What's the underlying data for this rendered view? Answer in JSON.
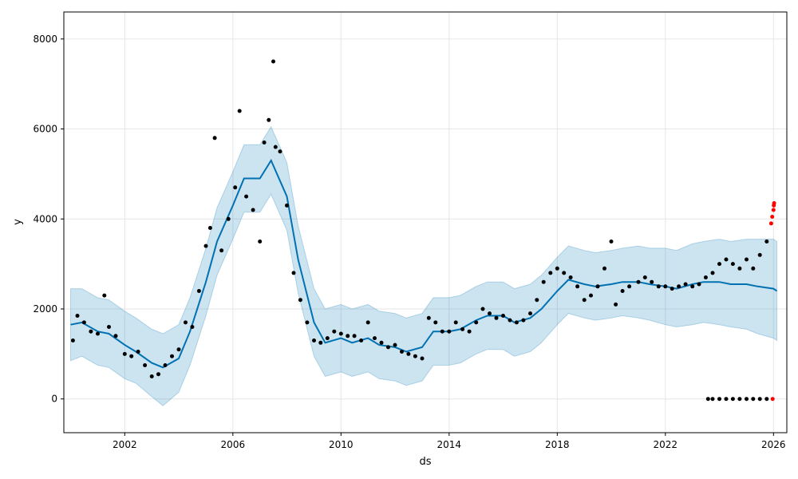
{
  "chart_data": {
    "type": "line",
    "title": "",
    "xlabel": "ds",
    "ylabel": "y",
    "grid": true,
    "xlim": [
      "1999-10-01",
      "2026-06-30"
    ],
    "ylim": [
      -750,
      8600
    ],
    "x_ticks": [
      "2002",
      "2006",
      "2010",
      "2014",
      "2018",
      "2022",
      "2026"
    ],
    "y_ticks": [
      0,
      2000,
      4000,
      6000,
      8000
    ],
    "colors": {
      "forecast_line": "#0072B2",
      "uncertainty_band": "#0072B2",
      "observed_points": "#000000",
      "outlier_points": "#ff0000"
    },
    "series": [
      {
        "type": "line",
        "x": [
          "2000-01-01",
          "2000-06-01",
          "2001-01-01",
          "2001-06-01",
          "2002-01-01",
          "2002-06-01",
          "2003-01-01",
          "2003-06-01",
          "2004-01-01",
          "2004-06-01",
          "2005-01-01",
          "2005-06-01",
          "2006-01-01",
          "2006-06-01",
          "2007-01-01",
          "2007-06-01",
          "2008-01-01",
          "2008-06-01",
          "2009-01-01",
          "2009-06-01",
          "2010-01-01",
          "2010-06-01",
          "2011-01-01",
          "2011-06-01",
          "2012-01-01",
          "2012-06-01",
          "2013-01-01",
          "2013-06-01",
          "2014-01-01",
          "2014-06-01",
          "2015-01-01",
          "2015-06-01",
          "2016-01-01",
          "2016-06-01",
          "2017-01-01",
          "2017-06-01",
          "2018-01-01",
          "2018-06-01",
          "2019-01-01",
          "2019-06-01",
          "2020-01-01",
          "2020-06-01",
          "2021-01-01",
          "2021-06-01",
          "2022-01-01",
          "2022-06-01",
          "2023-01-01",
          "2023-06-01",
          "2024-01-01",
          "2024-06-01",
          "2025-01-01",
          "2025-06-01",
          "2026-01-01",
          "2026-02-15"
        ],
        "y": [
          1650,
          1700,
          1500,
          1450,
          1200,
          1050,
          800,
          700,
          900,
          1500,
          2600,
          3500,
          4300,
          4900,
          4900,
          5300,
          4500,
          3100,
          1700,
          1250,
          1350,
          1250,
          1350,
          1200,
          1150,
          1050,
          1150,
          1500,
          1500,
          1550,
          1750,
          1850,
          1850,
          1700,
          1800,
          2000,
          2400,
          2650,
          2550,
          2500,
          2550,
          2600,
          2600,
          2550,
          2500,
          2450,
          2550,
          2600,
          2600,
          2550,
          2550,
          2500,
          2450,
          2400
        ],
        "yhat_lower": [
          850,
          950,
          750,
          700,
          450,
          350,
          50,
          -150,
          150,
          750,
          1850,
          2750,
          3550,
          4150,
          4150,
          4550,
          3750,
          2350,
          950,
          500,
          600,
          500,
          600,
          450,
          400,
          300,
          400,
          750,
          750,
          800,
          1000,
          1100,
          1100,
          950,
          1050,
          1250,
          1650,
          1900,
          1800,
          1750,
          1800,
          1850,
          1800,
          1750,
          1650,
          1600,
          1650,
          1700,
          1650,
          1600,
          1550,
          1450,
          1350,
          1300
        ],
        "yhat_upper": [
          2450,
          2450,
          2250,
          2200,
          1950,
          1800,
          1550,
          1450,
          1650,
          2250,
          3350,
          4250,
          5050,
          5650,
          5650,
          6050,
          5250,
          3850,
          2450,
          2000,
          2100,
          2000,
          2100,
          1950,
          1900,
          1800,
          1900,
          2250,
          2250,
          2300,
          2500,
          2600,
          2600,
          2450,
          2550,
          2750,
          3150,
          3400,
          3300,
          3250,
          3300,
          3350,
          3400,
          3350,
          3350,
          3300,
          3450,
          3500,
          3550,
          3500,
          3550,
          3550,
          3550,
          3500
        ]
      },
      {
        "type": "scatter",
        "x": [
          "2000-02-01",
          "2000-04-01",
          "2000-07-01",
          "2000-10-01",
          "2001-01-01",
          "2001-04-01",
          "2001-06-01",
          "2001-09-01",
          "2002-01-01",
          "2002-04-01",
          "2002-07-01",
          "2002-10-01",
          "2003-01-01",
          "2003-04-01",
          "2003-07-01",
          "2003-10-01",
          "2004-01-01",
          "2004-04-01",
          "2004-07-01",
          "2004-10-01",
          "2005-01-01",
          "2005-03-01",
          "2005-05-01",
          "2005-08-01",
          "2005-11-01",
          "2006-02-01",
          "2006-04-01",
          "2006-07-01",
          "2006-10-01",
          "2007-01-01",
          "2007-03-01",
          "2007-05-01",
          "2007-07-01",
          "2007-08-01",
          "2007-10-01",
          "2008-01-01",
          "2008-04-01",
          "2008-07-01",
          "2008-10-01",
          "2009-01-01",
          "2009-04-01",
          "2009-07-01",
          "2009-10-01",
          "2010-01-01",
          "2010-04-01",
          "2010-07-01",
          "2010-10-01",
          "2011-01-01",
          "2011-04-01",
          "2011-07-01",
          "2011-10-01",
          "2012-01-01",
          "2012-04-01",
          "2012-07-01",
          "2012-10-01",
          "2013-01-01",
          "2013-04-01",
          "2013-07-01",
          "2013-10-01",
          "2014-01-01",
          "2014-04-01",
          "2014-07-01",
          "2014-10-01",
          "2015-01-01",
          "2015-04-01",
          "2015-07-01",
          "2015-10-01",
          "2016-01-01",
          "2016-04-01",
          "2016-07-01",
          "2016-10-01",
          "2017-01-01",
          "2017-04-01",
          "2017-07-01",
          "2017-10-01",
          "2018-01-01",
          "2018-04-01",
          "2018-07-01",
          "2018-10-01",
          "2019-01-01",
          "2019-04-01",
          "2019-07-01",
          "2019-10-01",
          "2020-01-01",
          "2020-03-01",
          "2020-06-01",
          "2020-09-01",
          "2021-01-01",
          "2021-04-01",
          "2021-07-01",
          "2021-10-01",
          "2022-01-01",
          "2022-04-01",
          "2022-07-01",
          "2022-10-01",
          "2023-01-01",
          "2023-04-01",
          "2023-07-01",
          "2023-10-01",
          "2024-01-01",
          "2024-04-01",
          "2024-07-01",
          "2024-10-01",
          "2025-01-01",
          "2025-04-01",
          "2025-07-01",
          "2025-10-01"
        ],
        "y": [
          1300,
          1850,
          1700,
          1500,
          1450,
          2300,
          1600,
          1400,
          1000,
          950,
          1050,
          750,
          500,
          550,
          750,
          950,
          1100,
          1700,
          1600,
          2400,
          3400,
          3800,
          5800,
          3300,
          4000,
          4700,
          6400,
          4500,
          4200,
          3500,
          5700,
          6200,
          7500,
          5600,
          5500,
          4300,
          2800,
          2200,
          1700,
          1300,
          1250,
          1350,
          1500,
          1450,
          1400,
          1400,
          1300,
          1700,
          1350,
          1250,
          1150,
          1200,
          1050,
          1000,
          950,
          900,
          1800,
          1700,
          1500,
          1500,
          1700,
          1550,
          1500,
          1700,
          2000,
          1900,
          1800,
          1850,
          1750,
          1700,
          1750,
          1900,
          2200,
          2600,
          2800,
          2900,
          2800,
          2700,
          2500,
          2200,
          2300,
          2500,
          2900,
          3500,
          2100,
          2400,
          2500,
          2600,
          2700,
          2600,
          2500,
          2500,
          2450,
          2500,
          2550,
          2500,
          2550,
          2700,
          2800,
          3000,
          3100,
          3000,
          2900,
          3100,
          2900,
          3200,
          3500
        ]
      },
      {
        "type": "scatter",
        "x": [
          "2023-08-01",
          "2023-10-01",
          "2024-01-01",
          "2024-04-01",
          "2024-07-01",
          "2024-10-01",
          "2025-01-01",
          "2025-04-01",
          "2025-07-01",
          "2025-10-01"
        ],
        "y": [
          0,
          0,
          0,
          0,
          0,
          0,
          0,
          0,
          0,
          0
        ]
      },
      {
        "type": "scatter",
        "x": [
          "2025-12-01",
          "2025-12-15",
          "2026-01-01",
          "2026-01-05",
          "2026-01-10",
          "2025-12-20"
        ],
        "y": [
          3900,
          4050,
          4200,
          4300,
          4350,
          0
        ]
      }
    ]
  }
}
